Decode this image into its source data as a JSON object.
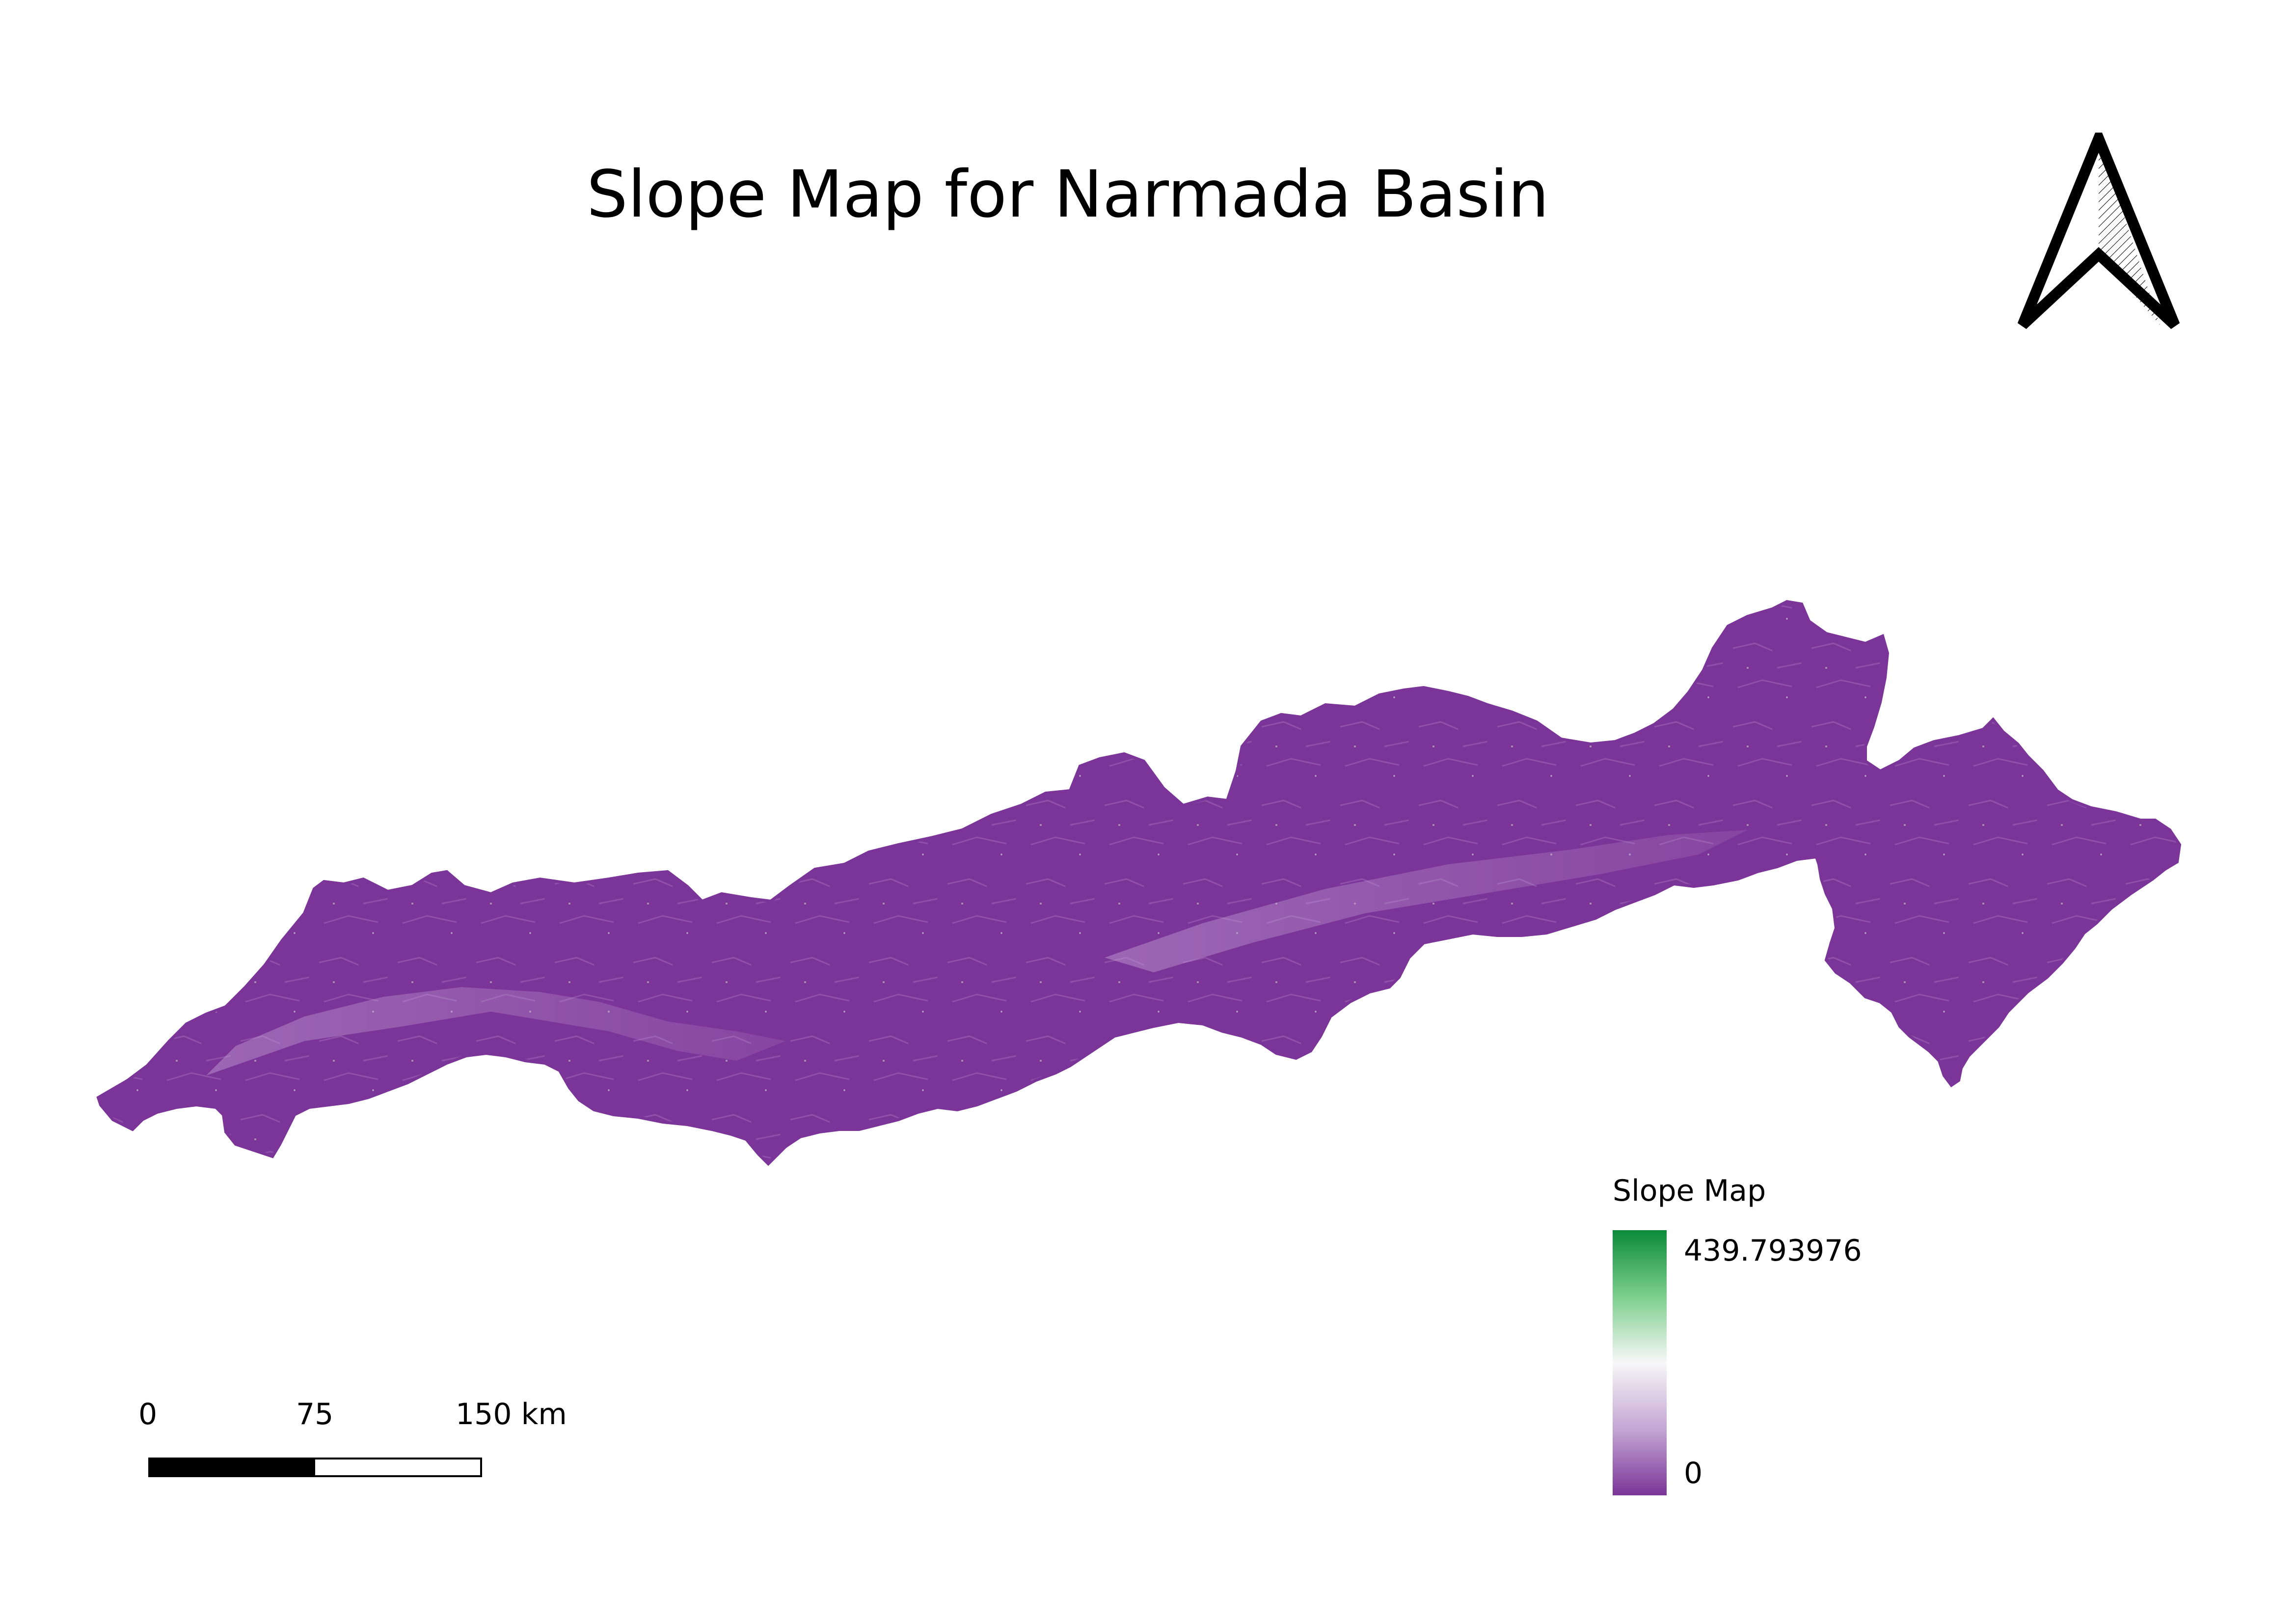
{
  "map": {
    "title": "Slope Map for Narmada Basin",
    "basin_fill_color": "#7b3598",
    "basin_light_texture_color": "#b48ac8"
  },
  "north_arrow": {
    "icon": "north-arrow-icon"
  },
  "scale_bar": {
    "labels": [
      "0",
      "75",
      "150 km"
    ],
    "unit": "km"
  },
  "legend": {
    "title": "Slope Map",
    "max_label": "439.793976",
    "min_label": "0",
    "ramp_colors": [
      "#0b8a3a",
      "#f7f7f7",
      "#7b3598"
    ]
  }
}
